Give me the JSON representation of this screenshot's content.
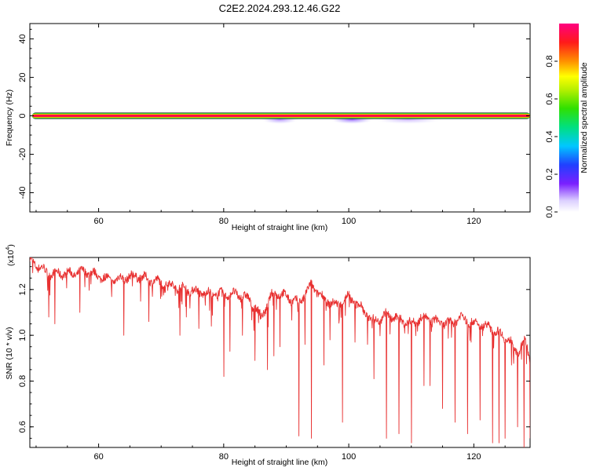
{
  "title": "C2E2.2024.293.12.46.G22",
  "chart_data": [
    {
      "type": "heatmap",
      "xlabel": "Height of straight line (km)",
      "ylabel": "Frequency (Hz)",
      "xlim": [
        49,
        129
      ],
      "ylim": [
        -50,
        48
      ],
      "x_ticks": [
        60,
        80,
        100,
        120
      ],
      "y_ticks": [
        40,
        20,
        0,
        -20,
        -40
      ],
      "dominant_band": {
        "frequency_hz": 0,
        "amplitude": 1.0
      },
      "weak_patches": [
        {
          "x_from": 86,
          "x_to": 92,
          "frequency_hz": -1,
          "amplitude": 0.15
        },
        {
          "x_from": 97,
          "x_to": 104,
          "frequency_hz": -1,
          "amplitude": 0.2
        },
        {
          "x_from": 104,
          "x_to": 115,
          "frequency_hz": -1,
          "amplitude": 0.1
        }
      ],
      "colorbar": {
        "label": "Normalized spectral amplitude",
        "ticks": [
          0.0,
          0.2,
          0.4,
          0.6,
          0.8
        ],
        "range": [
          0,
          1
        ]
      }
    },
    {
      "type": "line",
      "xlabel": "Height of straight line (km)",
      "ylabel": "SNR (10 * v/v)",
      "multiplier_label": "(x10",
      "multiplier_exp": "4",
      "xlim": [
        49,
        129
      ],
      "ylim": [
        0.51,
        1.34
      ],
      "x_ticks": [
        60,
        80,
        100,
        120
      ],
      "y_ticks": [
        1.2,
        1.0,
        0.8,
        0.6
      ],
      "series": [
        {
          "color": "#e83030",
          "trend": [
            [
              49,
              1.33
            ],
            [
              52,
              1.27
            ],
            [
              56,
              1.27
            ],
            [
              58,
              1.28
            ],
            [
              62,
              1.24
            ],
            [
              66,
              1.26
            ],
            [
              70,
              1.23
            ],
            [
              74,
              1.2
            ],
            [
              78,
              1.18
            ],
            [
              82,
              1.18
            ],
            [
              84,
              1.16
            ],
            [
              86,
              1.08
            ],
            [
              88,
              1.19
            ],
            [
              90,
              1.17
            ],
            [
              92,
              1.14
            ],
            [
              94,
              1.22
            ],
            [
              96,
              1.16
            ],
            [
              98,
              1.13
            ],
            [
              100,
              1.17
            ],
            [
              102,
              1.12
            ],
            [
              104,
              1.06
            ],
            [
              106,
              1.09
            ],
            [
              108,
              1.07
            ],
            [
              110,
              1.05
            ],
            [
              112,
              1.08
            ],
            [
              114,
              1.06
            ],
            [
              116,
              1.05
            ],
            [
              118,
              1.08
            ],
            [
              120,
              1.05
            ],
            [
              122,
              1.04
            ],
            [
              124,
              1.01
            ],
            [
              126,
              0.97
            ],
            [
              127,
              0.92
            ],
            [
              128,
              0.98
            ],
            [
              129,
              0.9
            ]
          ],
          "dips": [
            [
              52,
              1.08
            ],
            [
              53,
              1.05
            ],
            [
              57,
              1.1
            ],
            [
              64,
              1.0
            ],
            [
              68,
              1.06
            ],
            [
              73,
              1.0
            ],
            [
              74,
              1.08
            ],
            [
              76,
              1.03
            ],
            [
              78,
              1.04
            ],
            [
              80,
              0.82
            ],
            [
              81,
              0.93
            ],
            [
              83,
              1.0
            ],
            [
              85,
              0.89
            ],
            [
              87,
              0.85
            ],
            [
              88,
              0.91
            ],
            [
              89,
              0.95
            ],
            [
              92,
              0.56
            ],
            [
              93,
              0.96
            ],
            [
              94,
              0.55
            ],
            [
              96,
              0.87
            ],
            [
              97,
              0.98
            ],
            [
              99,
              0.62
            ],
            [
              101,
              0.97
            ],
            [
              103,
              0.96
            ],
            [
              104,
              0.81
            ],
            [
              106,
              0.55
            ],
            [
              108,
              0.57
            ],
            [
              110,
              0.53
            ],
            [
              112,
              0.78
            ],
            [
              113,
              0.78
            ],
            [
              115,
              0.68
            ],
            [
              117,
              0.62
            ],
            [
              119,
              0.57
            ],
            [
              121,
              0.63
            ],
            [
              123,
              0.53
            ],
            [
              124,
              0.53
            ],
            [
              125,
              0.55
            ],
            [
              126,
              0.87
            ],
            [
              127,
              0.6
            ],
            [
              128,
              0.51
            ],
            [
              129,
              0.55
            ]
          ]
        }
      ]
    }
  ]
}
